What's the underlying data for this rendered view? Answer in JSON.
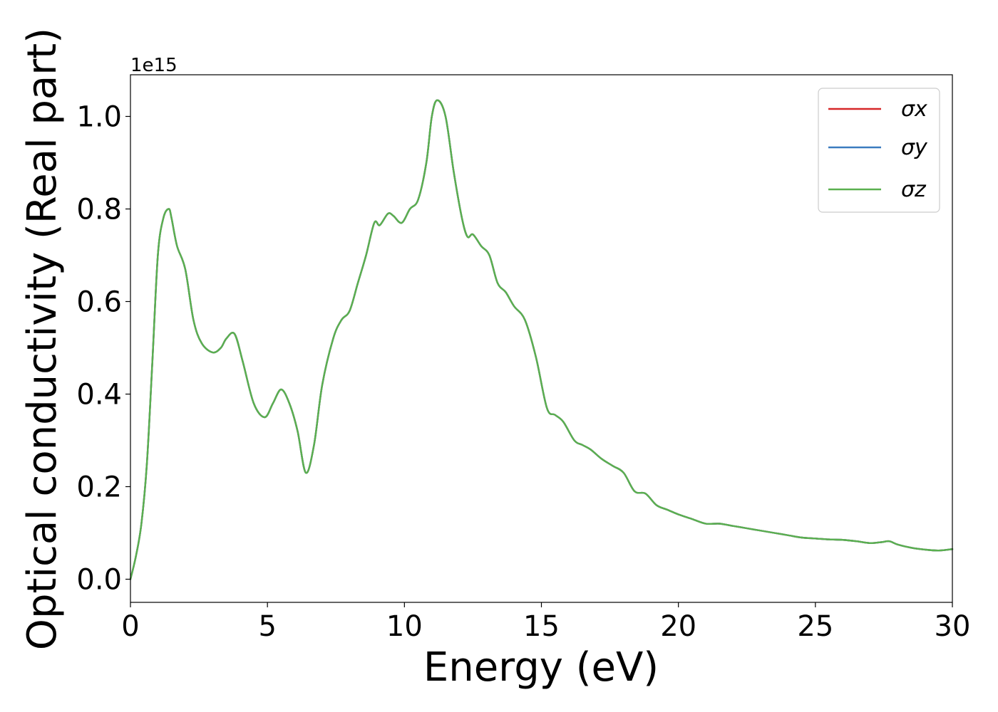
{
  "chart_data": {
    "type": "line",
    "xlabel": "Energy (eV)",
    "ylabel": "Optical conductivity (Real part)",
    "y_offset_label": "1e15",
    "xlim": [
      0,
      30
    ],
    "ylim": [
      -0.05,
      1.09
    ],
    "x_ticks": [
      0,
      5,
      10,
      15,
      20,
      25,
      30
    ],
    "x_tick_labels": [
      "0",
      "5",
      "10",
      "15",
      "20",
      "25",
      "30"
    ],
    "y_ticks": [
      0.0,
      0.2,
      0.4,
      0.6,
      0.8,
      1.0
    ],
    "y_tick_labels": [
      "0.0",
      "0.2",
      "0.4",
      "0.6",
      "0.8",
      "1.0"
    ],
    "grid": false,
    "legend_position": "top-right",
    "x": [
      0,
      0.2,
      0.4,
      0.6,
      0.8,
      1.0,
      1.2,
      1.4,
      1.5,
      1.7,
      2.0,
      2.3,
      2.6,
      3.0,
      3.3,
      3.5,
      3.8,
      4.1,
      4.5,
      4.9,
      5.2,
      5.5,
      5.8,
      6.1,
      6.4,
      6.7,
      7.0,
      7.4,
      7.7,
      8.0,
      8.3,
      8.6,
      8.9,
      9.1,
      9.4,
      9.6,
      9.9,
      10.2,
      10.5,
      10.8,
      11.0,
      11.2,
      11.5,
      11.8,
      12.1,
      12.3,
      12.5,
      12.8,
      13.1,
      13.4,
      13.7,
      14.0,
      14.4,
      14.8,
      15.2,
      15.5,
      15.8,
      16.2,
      16.5,
      16.8,
      17.2,
      17.6,
      18.0,
      18.4,
      18.8,
      19.2,
      19.6,
      20.0,
      20.5,
      21.0,
      21.5,
      22.0,
      22.5,
      23.0,
      23.5,
      24.0,
      24.5,
      25.0,
      25.5,
      26.0,
      26.5,
      27.0,
      27.4,
      27.7,
      28.0,
      28.5,
      29.0,
      29.5,
      30.0
    ],
    "series": [
      {
        "name": "σx",
        "color": "#d62728",
        "values": [
          0.0,
          0.05,
          0.12,
          0.25,
          0.47,
          0.7,
          0.78,
          0.8,
          0.78,
          0.72,
          0.67,
          0.56,
          0.51,
          0.49,
          0.5,
          0.52,
          0.53,
          0.47,
          0.38,
          0.35,
          0.38,
          0.41,
          0.38,
          0.32,
          0.23,
          0.29,
          0.42,
          0.52,
          0.56,
          0.58,
          0.64,
          0.7,
          0.77,
          0.765,
          0.79,
          0.785,
          0.77,
          0.8,
          0.82,
          0.9,
          1.0,
          1.035,
          1.0,
          0.88,
          0.78,
          0.74,
          0.745,
          0.72,
          0.7,
          0.64,
          0.62,
          0.59,
          0.56,
          0.48,
          0.37,
          0.355,
          0.34,
          0.3,
          0.29,
          0.28,
          0.26,
          0.245,
          0.23,
          0.19,
          0.185,
          0.16,
          0.15,
          0.14,
          0.13,
          0.12,
          0.12,
          0.115,
          0.11,
          0.105,
          0.1,
          0.095,
          0.09,
          0.088,
          0.086,
          0.085,
          0.082,
          0.078,
          0.08,
          0.082,
          0.075,
          0.068,
          0.064,
          0.062,
          0.065
        ]
      },
      {
        "name": "σy",
        "color": "#3a7bbf",
        "values": [
          0.0,
          0.05,
          0.12,
          0.25,
          0.47,
          0.7,
          0.78,
          0.8,
          0.78,
          0.72,
          0.67,
          0.56,
          0.51,
          0.49,
          0.5,
          0.52,
          0.53,
          0.47,
          0.38,
          0.35,
          0.38,
          0.41,
          0.38,
          0.32,
          0.23,
          0.29,
          0.42,
          0.52,
          0.56,
          0.58,
          0.64,
          0.7,
          0.77,
          0.765,
          0.79,
          0.785,
          0.77,
          0.8,
          0.82,
          0.9,
          1.0,
          1.035,
          1.0,
          0.88,
          0.78,
          0.74,
          0.745,
          0.72,
          0.7,
          0.64,
          0.62,
          0.59,
          0.56,
          0.48,
          0.37,
          0.355,
          0.34,
          0.3,
          0.29,
          0.28,
          0.26,
          0.245,
          0.23,
          0.19,
          0.185,
          0.16,
          0.15,
          0.14,
          0.13,
          0.12,
          0.12,
          0.115,
          0.11,
          0.105,
          0.1,
          0.095,
          0.09,
          0.088,
          0.086,
          0.085,
          0.082,
          0.078,
          0.08,
          0.082,
          0.075,
          0.068,
          0.064,
          0.062,
          0.065
        ]
      },
      {
        "name": "σz",
        "color": "#5ab04f",
        "values": [
          0.0,
          0.05,
          0.12,
          0.25,
          0.47,
          0.7,
          0.78,
          0.8,
          0.78,
          0.72,
          0.67,
          0.56,
          0.51,
          0.49,
          0.5,
          0.52,
          0.53,
          0.47,
          0.38,
          0.35,
          0.38,
          0.41,
          0.38,
          0.32,
          0.23,
          0.29,
          0.42,
          0.52,
          0.56,
          0.58,
          0.64,
          0.7,
          0.77,
          0.765,
          0.79,
          0.785,
          0.77,
          0.8,
          0.82,
          0.9,
          1.0,
          1.035,
          1.0,
          0.88,
          0.78,
          0.74,
          0.745,
          0.72,
          0.7,
          0.64,
          0.62,
          0.59,
          0.56,
          0.48,
          0.37,
          0.355,
          0.34,
          0.3,
          0.29,
          0.28,
          0.26,
          0.245,
          0.23,
          0.19,
          0.185,
          0.16,
          0.15,
          0.14,
          0.13,
          0.12,
          0.12,
          0.115,
          0.11,
          0.105,
          0.1,
          0.095,
          0.09,
          0.088,
          0.086,
          0.085,
          0.082,
          0.078,
          0.08,
          0.082,
          0.075,
          0.068,
          0.064,
          0.062,
          0.065
        ]
      }
    ]
  }
}
